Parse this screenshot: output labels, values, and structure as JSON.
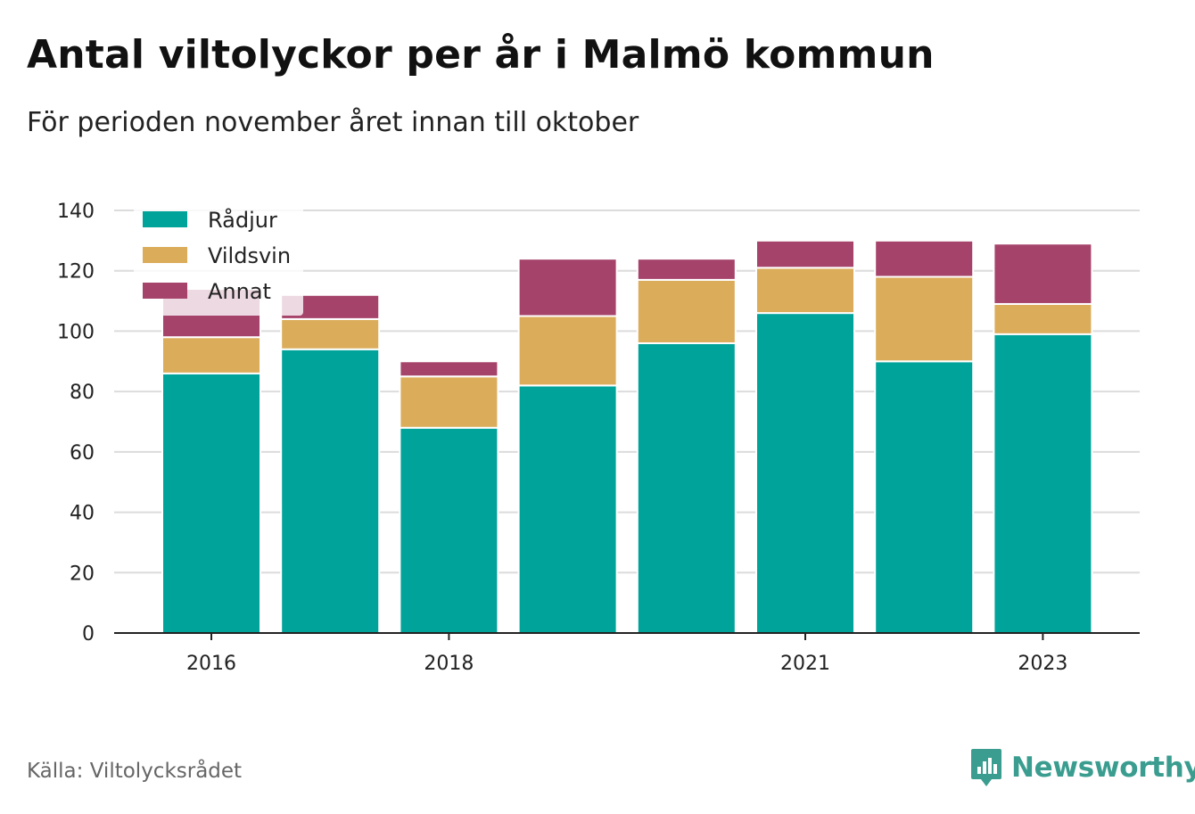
{
  "title": "Antal viltolyckor per år i Malmö kommun",
  "subtitle": "För perioden november året innan till oktober",
  "source": "Källa: Viltolycksrådet",
  "brand": "Newsworthy",
  "brand_color": "#3a9d8f",
  "chart_data": {
    "type": "bar",
    "stacked": true,
    "x": [
      2016,
      2017,
      2018,
      2019,
      2020,
      2021,
      2022,
      2023
    ],
    "x_tick_labels": [
      "2016",
      "2018",
      "2021",
      "2023"
    ],
    "x_tick_values": [
      2016,
      2018,
      2021,
      2023
    ],
    "series": [
      {
        "name": "Rådjur",
        "color": "#00a39a",
        "values": [
          86,
          94,
          68,
          82,
          96,
          106,
          90,
          99
        ]
      },
      {
        "name": "Vildsvin",
        "color": "#dbac5a",
        "values": [
          12,
          10,
          17,
          23,
          21,
          15,
          28,
          10
        ]
      },
      {
        "name": "Annat",
        "color": "#a6436a",
        "values": [
          16,
          8,
          5,
          19,
          7,
          9,
          12,
          20
        ]
      }
    ],
    "ylim": [
      0,
      140
    ],
    "y_ticks": [
      0,
      20,
      40,
      60,
      80,
      100,
      120,
      140
    ],
    "grid": true,
    "legend_position": "top-left"
  }
}
